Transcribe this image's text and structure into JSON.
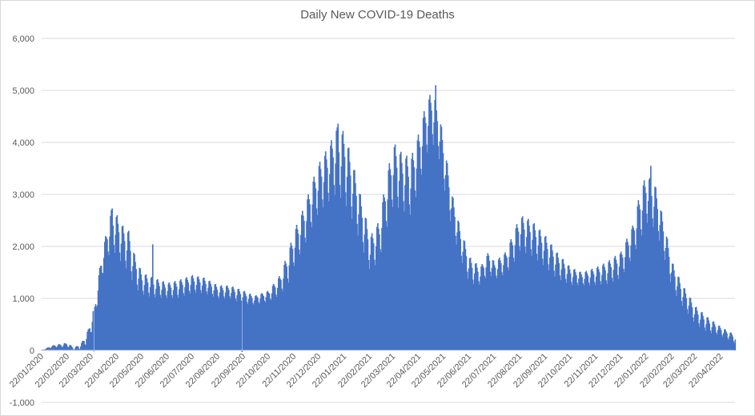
{
  "chart_data": {
    "type": "bar",
    "title": "Daily New COVID-19 Deaths",
    "xlabel": "",
    "ylabel": "",
    "ylim": [
      -1000,
      6000
    ],
    "y_ticks": [
      "-1,000",
      "0",
      "1,000",
      "2,000",
      "3,000",
      "4,000",
      "5,000",
      "6,000"
    ],
    "y_tick_values": [
      -1000,
      0,
      1000,
      2000,
      3000,
      4000,
      5000,
      6000
    ],
    "x_range": [
      "2020-01-22",
      "2022-05-09"
    ],
    "x_tick_labels": [
      "22/01/2020",
      "22/02/2020",
      "22/03/2020",
      "22/04/2020",
      "22/05/2020",
      "22/06/2020",
      "22/07/2020",
      "22/08/2020",
      "22/09/2020",
      "22/10/2020",
      "22/11/2020",
      "22/12/2020",
      "22/01/2021",
      "22/02/2021",
      "22/03/2021",
      "22/04/2021",
      "22/05/2021",
      "22/06/2021",
      "22/07/2021",
      "22/08/2021",
      "22/09/2021",
      "22/10/2021",
      "22/11/2021",
      "22/12/2021",
      "22/01/2022",
      "22/02/2022",
      "22/03/2022",
      "22/04/2022"
    ],
    "x_tick_dates": [
      "2020-01-22",
      "2020-02-22",
      "2020-03-22",
      "2020-04-22",
      "2020-05-22",
      "2020-06-22",
      "2020-07-22",
      "2020-08-22",
      "2020-09-22",
      "2020-10-22",
      "2020-11-22",
      "2020-12-22",
      "2021-01-22",
      "2021-02-22",
      "2021-03-22",
      "2021-04-22",
      "2021-05-22",
      "2021-06-22",
      "2021-07-22",
      "2021-08-22",
      "2021-09-22",
      "2021-10-22",
      "2021-11-22",
      "2021-12-22",
      "2022-01-22",
      "2022-02-22",
      "2022-03-22",
      "2022-04-22"
    ],
    "gridlines": true,
    "legend": "none",
    "bar_color": "#4472c4",
    "series": [
      {
        "frequency": "daily",
        "start_date": "2020-01-22",
        "weekly_trend": [
          {
            "date": "2020-01-22",
            "high": 10,
            "low": 0
          },
          {
            "date": "2020-02-05",
            "high": 100,
            "low": 50
          },
          {
            "date": "2020-02-22",
            "high": 150,
            "low": 40
          },
          {
            "date": "2020-03-01",
            "high": 50,
            "low": 0
          },
          {
            "date": "2020-03-10",
            "high": 150,
            "low": 0
          },
          {
            "date": "2020-03-18",
            "high": 400,
            "low": 100
          },
          {
            "date": "2020-03-26",
            "high": 900,
            "low": 500
          },
          {
            "date": "2020-04-02",
            "high": 1700,
            "low": 1200
          },
          {
            "date": "2020-04-08",
            "high": 2200,
            "low": 1600
          },
          {
            "date": "2020-04-15",
            "high": 2700,
            "low": 1800
          },
          {
            "date": "2020-04-22",
            "high": 2600,
            "low": 1700
          },
          {
            "date": "2020-04-29",
            "high": 2400,
            "low": 1500
          },
          {
            "date": "2020-05-06",
            "high": 2300,
            "low": 1400
          },
          {
            "date": "2020-05-13",
            "high": 1850,
            "low": 1100
          },
          {
            "date": "2020-05-22",
            "high": 1500,
            "low": 1000
          },
          {
            "date": "2020-06-05",
            "high": 1400,
            "low": 950
          },
          {
            "date": "2020-06-22",
            "high": 1300,
            "low": 950
          },
          {
            "date": "2020-07-05",
            "high": 1350,
            "low": 950
          },
          {
            "date": "2020-07-22",
            "high": 1450,
            "low": 1050
          },
          {
            "date": "2020-08-05",
            "high": 1400,
            "low": 1050
          },
          {
            "date": "2020-08-22",
            "high": 1250,
            "low": 950
          },
          {
            "date": "2020-09-05",
            "high": 1250,
            "low": 950
          },
          {
            "date": "2020-09-22",
            "high": 1150,
            "low": 850
          },
          {
            "date": "2020-10-05",
            "high": 1050,
            "low": 850
          },
          {
            "date": "2020-10-22",
            "high": 1150,
            "low": 900
          },
          {
            "date": "2020-11-05",
            "high": 1450,
            "low": 1000
          },
          {
            "date": "2020-11-15",
            "high": 1900,
            "low": 1200
          },
          {
            "date": "2020-11-22",
            "high": 2300,
            "low": 1500
          },
          {
            "date": "2020-12-05",
            "high": 2800,
            "low": 1900
          },
          {
            "date": "2020-12-15",
            "high": 3300,
            "low": 2300
          },
          {
            "date": "2020-12-22",
            "high": 3600,
            "low": 2500
          },
          {
            "date": "2021-01-05",
            "high": 4000,
            "low": 2700
          },
          {
            "date": "2021-01-12",
            "high": 4300,
            "low": 2800
          },
          {
            "date": "2021-01-22",
            "high": 4200,
            "low": 2600
          },
          {
            "date": "2021-02-01",
            "high": 3600,
            "low": 2300
          },
          {
            "date": "2021-02-10",
            "high": 3000,
            "low": 1900
          },
          {
            "date": "2021-02-22",
            "high": 2200,
            "low": 1400
          },
          {
            "date": "2021-03-05",
            "high": 2500,
            "low": 1600
          },
          {
            "date": "2021-03-12",
            "high": 3200,
            "low": 2100
          },
          {
            "date": "2021-03-22",
            "high": 4000,
            "low": 2600
          },
          {
            "date": "2021-04-01",
            "high": 3800,
            "low": 2500
          },
          {
            "date": "2021-04-12",
            "high": 3700,
            "low": 2400
          },
          {
            "date": "2021-04-22",
            "high": 4200,
            "low": 3000
          },
          {
            "date": "2021-05-01",
            "high": 4800,
            "low": 3600
          },
          {
            "date": "2021-05-08",
            "high": 5000,
            "low": 3800
          },
          {
            "date": "2021-05-15",
            "high": 4700,
            "low": 3600
          },
          {
            "date": "2021-05-22",
            "high": 4000,
            "low": 3000
          },
          {
            "date": "2021-06-01",
            "high": 3000,
            "low": 2200
          },
          {
            "date": "2021-06-10",
            "high": 2400,
            "low": 1700
          },
          {
            "date": "2021-06-22",
            "high": 1800,
            "low": 1200
          },
          {
            "date": "2021-07-05",
            "high": 1600,
            "low": 1200
          },
          {
            "date": "2021-07-15",
            "high": 1900,
            "low": 1400
          },
          {
            "date": "2021-07-22",
            "high": 1700,
            "low": 1300
          },
          {
            "date": "2021-08-05",
            "high": 1900,
            "low": 1400
          },
          {
            "date": "2021-08-15",
            "high": 2300,
            "low": 1600
          },
          {
            "date": "2021-08-22",
            "high": 2600,
            "low": 1800
          },
          {
            "date": "2021-09-05",
            "high": 2500,
            "low": 1700
          },
          {
            "date": "2021-09-22",
            "high": 2200,
            "low": 1500
          },
          {
            "date": "2021-10-05",
            "high": 1900,
            "low": 1300
          },
          {
            "date": "2021-10-22",
            "high": 1600,
            "low": 1200
          },
          {
            "date": "2021-11-05",
            "high": 1500,
            "low": 1200
          },
          {
            "date": "2021-11-22",
            "high": 1600,
            "low": 1200
          },
          {
            "date": "2021-12-05",
            "high": 1700,
            "low": 1200
          },
          {
            "date": "2021-12-22",
            "high": 1900,
            "low": 1300
          },
          {
            "date": "2022-01-05",
            "high": 2400,
            "low": 1700
          },
          {
            "date": "2022-01-15",
            "high": 3100,
            "low": 2000
          },
          {
            "date": "2022-01-22",
            "high": 3400,
            "low": 2300
          },
          {
            "date": "2022-02-01",
            "high": 3200,
            "low": 2200
          },
          {
            "date": "2022-02-10",
            "high": 2600,
            "low": 1800
          },
          {
            "date": "2022-02-22",
            "high": 1700,
            "low": 1100
          },
          {
            "date": "2022-03-05",
            "high": 1300,
            "low": 800
          },
          {
            "date": "2022-03-22",
            "high": 850,
            "low": 450
          },
          {
            "date": "2022-04-05",
            "high": 650,
            "low": 300
          },
          {
            "date": "2022-04-22",
            "high": 450,
            "low": 250
          },
          {
            "date": "2022-05-09",
            "high": 300,
            "low": 100
          }
        ],
        "spikes": [
          {
            "date": "2020-06-04",
            "value": 2040
          },
          {
            "date": "2021-05-12",
            "value": 5100
          },
          {
            "date": "2020-04-16",
            "value": 2730
          },
          {
            "date": "2022-01-27",
            "value": 3550
          },
          {
            "date": "2021-01-14",
            "value": 4360
          }
        ],
        "dips": [
          {
            "date": "2020-09-20",
            "value": -30
          },
          {
            "date": "2020-03-25",
            "value": -20
          }
        ]
      }
    ]
  }
}
